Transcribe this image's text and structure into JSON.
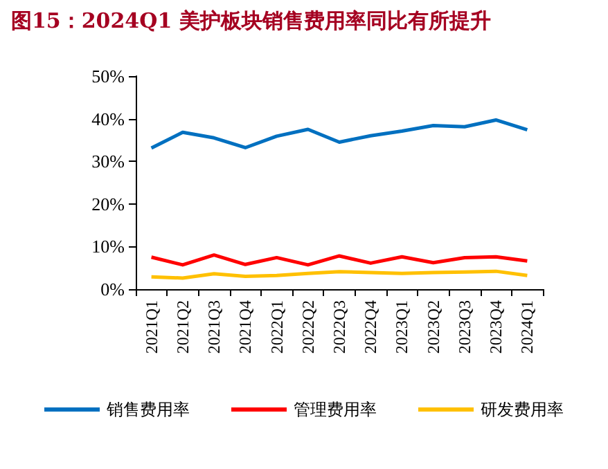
{
  "chart_data": {
    "type": "line",
    "title": "图15：2024Q1 美护板块销售费用率同比有所提升",
    "categories": [
      "2021Q1",
      "2021Q2",
      "2021Q3",
      "2021Q4",
      "2022Q1",
      "2022Q2",
      "2022Q3",
      "2022Q4",
      "2023Q1",
      "2023Q2",
      "2023Q3",
      "2023Q4",
      "2024Q1"
    ],
    "series": [
      {
        "name": "销售费用率",
        "color": "#0070c0",
        "values": [
          33.1,
          36.8,
          35.5,
          33.2,
          35.9,
          37.5,
          34.5,
          36.0,
          37.1,
          38.4,
          38.1,
          39.7,
          37.4
        ]
      },
      {
        "name": "管理费用率",
        "color": "#ff0000",
        "values": [
          7.5,
          5.7,
          8.0,
          5.8,
          7.4,
          5.7,
          7.8,
          6.1,
          7.6,
          6.2,
          7.4,
          7.6,
          6.6
        ]
      },
      {
        "name": "研发费用率",
        "color": "#ffc000",
        "values": [
          2.9,
          2.6,
          3.6,
          3.0,
          3.2,
          3.7,
          4.1,
          3.9,
          3.7,
          3.9,
          4.0,
          4.2,
          3.2
        ]
      }
    ],
    "ylim": [
      0,
      50
    ],
    "yticks": [
      {
        "value": 0,
        "label": "0%"
      },
      {
        "value": 10,
        "label": "10%"
      },
      {
        "value": 20,
        "label": "20%"
      },
      {
        "value": 30,
        "label": "30%"
      },
      {
        "value": 40,
        "label": "40%"
      },
      {
        "value": 50,
        "label": "50%"
      }
    ],
    "grid": false,
    "legend": "bottom",
    "marker": "none",
    "line_style": "solid"
  }
}
